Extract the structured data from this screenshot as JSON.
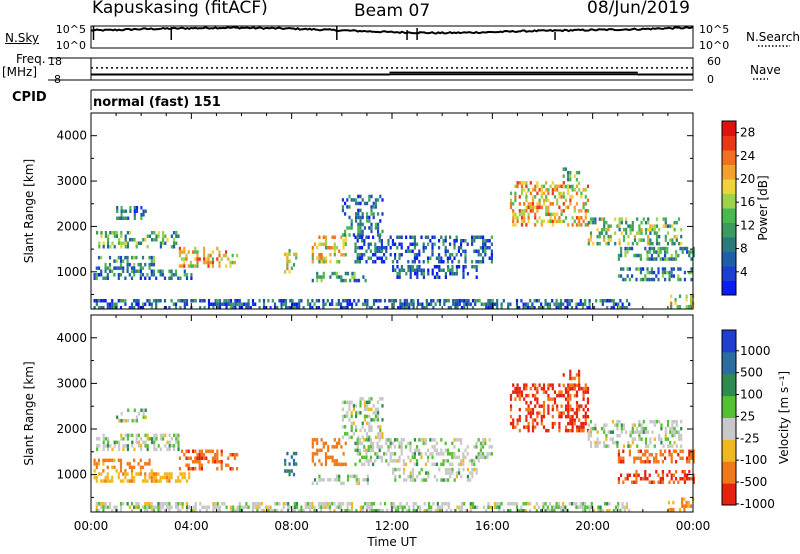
{
  "header": {
    "station": "Kapuskasing (fitACF)",
    "beam": "Beam 07",
    "date": "08/Jun/2019"
  },
  "status_panels": {
    "nsky_label": "N.Sky",
    "nsky_ticks": [
      "10^5",
      "10^0"
    ],
    "nsearch_label": "N.Search",
    "nsearch_ticks": [
      "10^5",
      "10^0"
    ],
    "freq_label": "Freq.",
    "freq_unit": "[MHz]",
    "freq_ticks": [
      "18",
      "8"
    ],
    "nave_label": "Nave",
    "nave_ticks": [
      "60",
      "0"
    ],
    "cpid_label": "CPID",
    "cpid_value": "normal (fast) 151",
    "nsky_series": [
      4.0,
      4.1,
      4.3,
      4.4,
      4.5,
      4.6,
      4.6,
      4.5,
      4.4,
      4.2,
      4.0,
      3.8,
      3.6,
      3.5,
      3.4,
      3.5,
      3.6,
      3.8,
      3.9,
      4.0,
      4.1,
      4.2,
      4.3,
      4.5,
      4.6
    ],
    "freq_value_mhz": 10.5,
    "nave_series": [
      {
        "from": 0,
        "to": 11.9,
        "value": 15
      },
      {
        "from": 11.9,
        "to": 21.8,
        "value": 20
      },
      {
        "from": 21.8,
        "to": 24,
        "value": 15
      }
    ],
    "nave_dotted_value": 33
  },
  "chart_data": [
    {
      "type": "heatmap",
      "name": "power",
      "ylabel": "Slant Range [km]",
      "xlabel": "Time UT",
      "x_ticks": [
        "00:00",
        "04:00",
        "08:00",
        "12:00",
        "16:00",
        "20:00",
        "00:00"
      ],
      "y_ticks": [
        "1000",
        "2000",
        "3000",
        "4000"
      ],
      "x_range_hours": [
        0,
        24
      ],
      "y_range_km": [
        180,
        4500
      ],
      "colorbar": {
        "label": "Power [dB]",
        "ticks": [
          "4",
          "8",
          "12",
          "16",
          "20",
          "24",
          "28"
        ],
        "range": [
          0,
          30
        ],
        "colors": [
          "#0b1cf5",
          "#1b3fd4",
          "#1f5fa8",
          "#2b7a7a",
          "#3a9a60",
          "#4ab850",
          "#9ed24a",
          "#f0d23a",
          "#f4a02c",
          "#f07020",
          "#e83818",
          "#e01010"
        ]
      },
      "echo_regions": [
        {
          "t0": 0.1,
          "t1": 2.5,
          "r0": 1100,
          "r1": 1350,
          "v": 10
        },
        {
          "t0": 0.2,
          "t1": 3.5,
          "r0": 1550,
          "r1": 1900,
          "v": 12
        },
        {
          "t0": 1.0,
          "t1": 2.2,
          "r0": 2150,
          "r1": 2450,
          "v": 9
        },
        {
          "t0": 3.5,
          "t1": 5.8,
          "r0": 1150,
          "r1": 1550,
          "v": 20
        },
        {
          "t0": 0.1,
          "t1": 4.0,
          "r0": 820,
          "r1": 1050,
          "v": 8
        },
        {
          "t0": 0.1,
          "t1": 21.5,
          "r0": 200,
          "r1": 400,
          "v": 6
        },
        {
          "t0": 7.7,
          "t1": 8.2,
          "r0": 1000,
          "r1": 1500,
          "v": 16
        },
        {
          "t0": 8.8,
          "t1": 10.2,
          "r0": 1200,
          "r1": 1800,
          "v": 18
        },
        {
          "t0": 8.8,
          "t1": 11.0,
          "r0": 820,
          "r1": 1000,
          "v": 10
        },
        {
          "t0": 10.0,
          "t1": 11.6,
          "r0": 1800,
          "r1": 2700,
          "v": 8
        },
        {
          "t0": 10.5,
          "t1": 16.0,
          "r0": 1200,
          "r1": 1800,
          "v": 6
        },
        {
          "t0": 12.0,
          "t1": 15.5,
          "r0": 900,
          "r1": 1150,
          "v": 6
        },
        {
          "t0": 16.7,
          "t1": 19.8,
          "r0": 2000,
          "r1": 3000,
          "v": 20
        },
        {
          "t0": 18.8,
          "t1": 19.5,
          "r0": 2900,
          "r1": 3300,
          "v": 14
        },
        {
          "t0": 19.8,
          "t1": 23.5,
          "r0": 1600,
          "r1": 2200,
          "v": 14
        },
        {
          "t0": 21.0,
          "t1": 24.0,
          "r0": 1300,
          "r1": 1550,
          "v": 10
        },
        {
          "t0": 21.0,
          "t1": 24.0,
          "r0": 850,
          "r1": 1100,
          "v": 9
        },
        {
          "t0": 23.0,
          "t1": 24.0,
          "r0": 200,
          "r1": 500,
          "v": 18
        }
      ]
    },
    {
      "type": "heatmap",
      "name": "velocity",
      "ylabel": "Slant Range [km]",
      "xlabel": "Time UT",
      "x_ticks": [
        "00:00",
        "04:00",
        "08:00",
        "12:00",
        "16:00",
        "20:00",
        "00:00"
      ],
      "y_ticks": [
        "1000",
        "2000",
        "3000",
        "4000"
      ],
      "x_range_hours": [
        0,
        24
      ],
      "y_range_km": [
        180,
        4500
      ],
      "colorbar": {
        "label": "Velocity [m s⁻¹]",
        "ticks": [
          "1000",
          "500",
          "100",
          "25",
          "-25",
          "-100",
          "-500",
          "-1000"
        ],
        "colors": [
          "#1f3fd0",
          "#2a6ea0",
          "#2e8a4e",
          "#54c034",
          "#c8c8c8",
          "#f0b820",
          "#f07818",
          "#e82010"
        ]
      },
      "echo_regions": [
        {
          "t0": 0.1,
          "t1": 2.5,
          "r0": 1100,
          "r1": 1350,
          "v": -150
        },
        {
          "t0": 0.2,
          "t1": 3.5,
          "r0": 1550,
          "r1": 1900,
          "v": 0
        },
        {
          "t0": 1.0,
          "t1": 2.2,
          "r0": 2150,
          "r1": 2450,
          "v": 0
        },
        {
          "t0": 3.5,
          "t1": 5.8,
          "r0": 1150,
          "r1": 1550,
          "v": -400
        },
        {
          "t0": 0.1,
          "t1": 4.0,
          "r0": 820,
          "r1": 1050,
          "v": -80
        },
        {
          "t0": 0.1,
          "t1": 21.5,
          "r0": 200,
          "r1": 400,
          "v": 0
        },
        {
          "t0": 7.7,
          "t1": 8.2,
          "r0": 1000,
          "r1": 1500,
          "v": 120
        },
        {
          "t0": 8.8,
          "t1": 10.2,
          "r0": 1200,
          "r1": 1800,
          "v": -300
        },
        {
          "t0": 8.8,
          "t1": 11.0,
          "r0": 820,
          "r1": 1000,
          "v": 0
        },
        {
          "t0": 10.0,
          "t1": 11.6,
          "r0": 1800,
          "r1": 2700,
          "v": 0
        },
        {
          "t0": 10.5,
          "t1": 16.0,
          "r0": 1200,
          "r1": 1800,
          "v": 0
        },
        {
          "t0": 12.0,
          "t1": 15.5,
          "r0": 900,
          "r1": 1150,
          "v": 0
        },
        {
          "t0": 16.7,
          "t1": 19.8,
          "r0": 2000,
          "r1": 3000,
          "v": -600
        },
        {
          "t0": 18.8,
          "t1": 19.5,
          "r0": 2900,
          "r1": 3300,
          "v": -500
        },
        {
          "t0": 19.8,
          "t1": 23.5,
          "r0": 1600,
          "r1": 2200,
          "v": 0
        },
        {
          "t0": 21.0,
          "t1": 24.0,
          "r0": 1300,
          "r1": 1550,
          "v": -400
        },
        {
          "t0": 21.0,
          "t1": 24.0,
          "r0": 850,
          "r1": 1100,
          "v": -600
        },
        {
          "t0": 23.0,
          "t1": 24.0,
          "r0": 200,
          "r1": 500,
          "v": -100
        }
      ]
    }
  ]
}
